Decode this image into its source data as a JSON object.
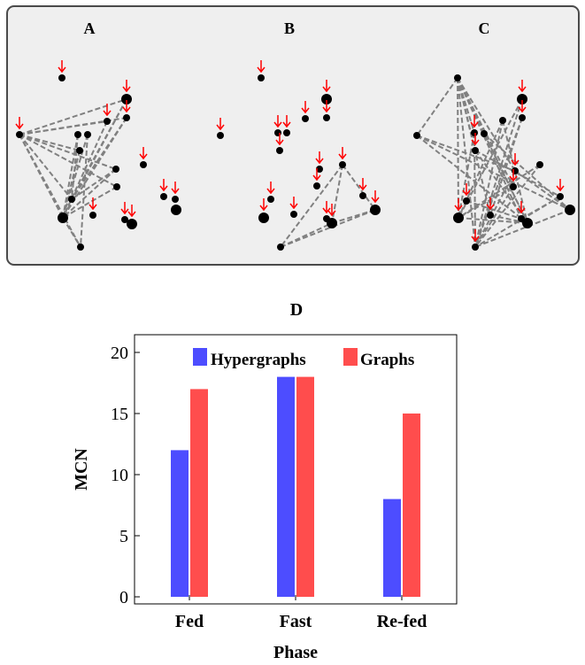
{
  "panels": [
    {
      "label": "A"
    },
    {
      "label": "B"
    },
    {
      "label": "C"
    }
  ],
  "network_colors": {
    "arrow": "#ff0000",
    "node": "#000000",
    "edge": "#808080"
  },
  "chart_data": {
    "type": "bar",
    "title": "D",
    "xlabel": "Phase",
    "ylabel": "MCN",
    "categories": [
      "Fed",
      "Fast",
      "Re-fed"
    ],
    "series": [
      {
        "name": "Hypergraphs",
        "color": "#4d4dff",
        "values": [
          12,
          18,
          8
        ]
      },
      {
        "name": "Graphs",
        "color": "#ff4d4d",
        "values": [
          17,
          18,
          15
        ]
      }
    ],
    "ylim": [
      0,
      21
    ],
    "yticks": [
      0,
      5,
      10,
      15,
      20
    ],
    "grid": false,
    "legend": "top"
  }
}
